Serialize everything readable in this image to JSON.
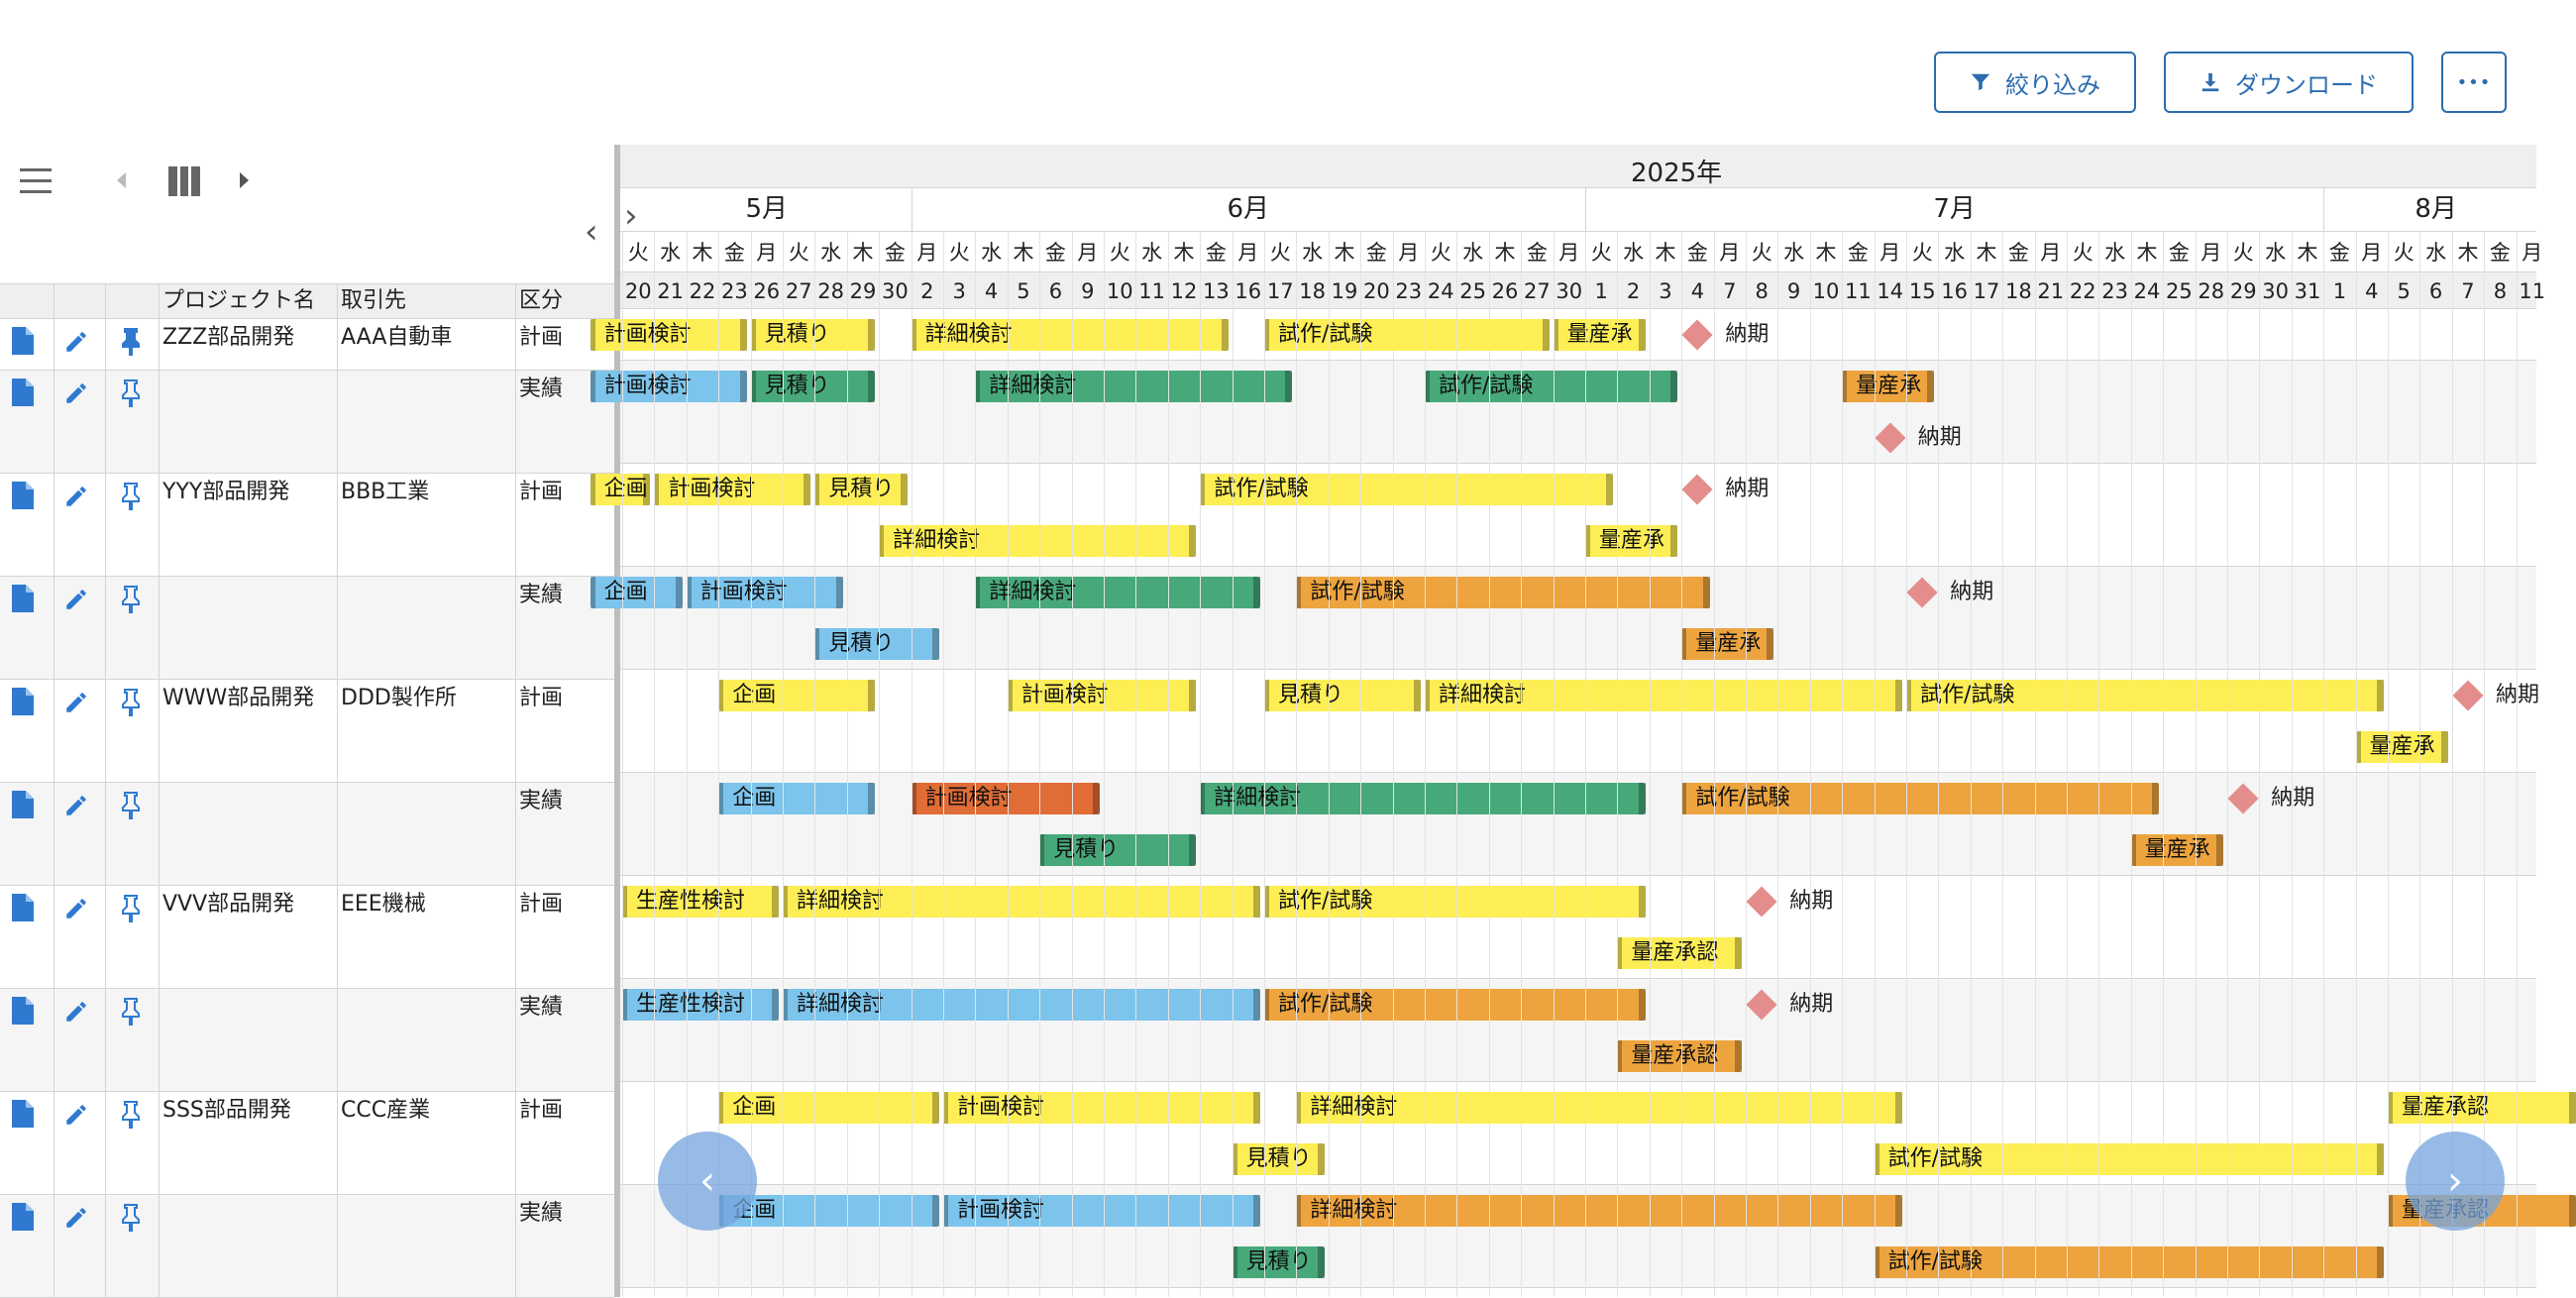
{
  "toolbar": {
    "filter_label": "絞り込み",
    "download_label": "ダウンロード",
    "more_label": "•••"
  },
  "grid": {
    "columns": [
      "プロジェクト名",
      "取引先",
      "区分"
    ],
    "collapse_glyph": "‹",
    "expand_glyph": "›"
  },
  "timeline": {
    "year": "2025年",
    "months": [
      "5月",
      "6月",
      "7月",
      "8月"
    ],
    "days": [
      {
        "w": "火",
        "d": "20"
      },
      {
        "w": "水",
        "d": "21"
      },
      {
        "w": "木",
        "d": "22"
      },
      {
        "w": "金",
        "d": "23"
      },
      {
        "w": "月",
        "d": "26"
      },
      {
        "w": "火",
        "d": "27"
      },
      {
        "w": "水",
        "d": "28"
      },
      {
        "w": "木",
        "d": "29"
      },
      {
        "w": "金",
        "d": "30"
      },
      {
        "w": "月",
        "d": "2"
      },
      {
        "w": "火",
        "d": "3"
      },
      {
        "w": "水",
        "d": "4"
      },
      {
        "w": "木",
        "d": "5"
      },
      {
        "w": "金",
        "d": "6"
      },
      {
        "w": "月",
        "d": "9"
      },
      {
        "w": "火",
        "d": "10"
      },
      {
        "w": "水",
        "d": "11"
      },
      {
        "w": "木",
        "d": "12"
      },
      {
        "w": "金",
        "d": "13"
      },
      {
        "w": "月",
        "d": "16"
      },
      {
        "w": "火",
        "d": "17"
      },
      {
        "w": "水",
        "d": "18"
      },
      {
        "w": "木",
        "d": "19"
      },
      {
        "w": "金",
        "d": "20"
      },
      {
        "w": "月",
        "d": "23"
      },
      {
        "w": "火",
        "d": "24"
      },
      {
        "w": "水",
        "d": "25"
      },
      {
        "w": "木",
        "d": "26"
      },
      {
        "w": "金",
        "d": "27"
      },
      {
        "w": "月",
        "d": "30"
      },
      {
        "w": "火",
        "d": "1"
      },
      {
        "w": "水",
        "d": "2"
      },
      {
        "w": "木",
        "d": "3"
      },
      {
        "w": "金",
        "d": "4"
      },
      {
        "w": "月",
        "d": "7"
      },
      {
        "w": "火",
        "d": "8"
      },
      {
        "w": "水",
        "d": "9"
      },
      {
        "w": "木",
        "d": "10"
      },
      {
        "w": "金",
        "d": "11"
      },
      {
        "w": "月",
        "d": "14"
      },
      {
        "w": "火",
        "d": "15"
      },
      {
        "w": "水",
        "d": "16"
      },
      {
        "w": "木",
        "d": "17"
      },
      {
        "w": "金",
        "d": "18"
      },
      {
        "w": "月",
        "d": "21"
      },
      {
        "w": "火",
        "d": "22"
      },
      {
        "w": "水",
        "d": "23"
      },
      {
        "w": "木",
        "d": "24"
      },
      {
        "w": "金",
        "d": "25"
      },
      {
        "w": "月",
        "d": "28"
      },
      {
        "w": "火",
        "d": "29"
      },
      {
        "w": "水",
        "d": "30"
      },
      {
        "w": "木",
        "d": "31"
      },
      {
        "w": "金",
        "d": "1"
      },
      {
        "w": "月",
        "d": "4"
      },
      {
        "w": "火",
        "d": "5"
      },
      {
        "w": "水",
        "d": "6"
      },
      {
        "w": "木",
        "d": "7"
      },
      {
        "w": "金",
        "d": "8"
      },
      {
        "w": "月",
        "d": "11"
      }
    ],
    "month_start_index": [
      0,
      9,
      30,
      53
    ]
  },
  "colors": {
    "plan": "#fdee55",
    "actual_blue": "#7cc4eb",
    "actual_green": "#47a97a",
    "actual_orange": "#eda43f",
    "actual_red": "#e06c36",
    "milestone": "#e48d8d",
    "accent": "#2b6cb0"
  },
  "rows": [
    {
      "project": "ZZZ部品開発",
      "client": "AAA自動車",
      "kind": "計画",
      "lanes": 1,
      "pinned": true,
      "bars": [
        {
          "label": "計画検討",
          "s": -1,
          "e": 3,
          "lane": 0,
          "color": "plan"
        },
        {
          "label": "見積り",
          "s": 4,
          "e": 7,
          "lane": 0,
          "color": "plan"
        },
        {
          "label": "詳細検討",
          "s": 9,
          "e": 18,
          "lane": 0,
          "color": "plan"
        },
        {
          "label": "試作/試験",
          "s": 20,
          "e": 28,
          "lane": 0,
          "color": "plan"
        },
        {
          "label": "量産承",
          "s": 29,
          "e": 31,
          "lane": 0,
          "color": "plan"
        }
      ],
      "milestones": [
        {
          "label": "納期",
          "i": 33,
          "lane": 0
        }
      ]
    },
    {
      "project": "",
      "client": "",
      "kind": "実績",
      "lanes": 2,
      "pinned": false,
      "bars": [
        {
          "label": "計画検討",
          "s": -1,
          "e": 3,
          "lane": 0,
          "color": "actual_blue"
        },
        {
          "label": "見積り",
          "s": 4,
          "e": 7,
          "lane": 0,
          "color": "actual_green"
        },
        {
          "label": "詳細検討",
          "s": 11,
          "e": 20,
          "lane": 0,
          "color": "actual_green"
        },
        {
          "label": "試作/試験",
          "s": 25,
          "e": 32,
          "lane": 0,
          "color": "actual_green"
        },
        {
          "label": "量産承",
          "s": 38,
          "e": 40,
          "lane": 0,
          "color": "actual_orange"
        }
      ],
      "milestones": [
        {
          "label": "納期",
          "i": 39,
          "lane": 1
        }
      ]
    },
    {
      "project": "YYY部品開発",
      "client": "BBB工業",
      "kind": "計画",
      "lanes": 2,
      "pinned": false,
      "bars": [
        {
          "label": "企画",
          "s": -1,
          "e": 0,
          "lane": 0,
          "color": "plan"
        },
        {
          "label": "計画検討",
          "s": 1,
          "e": 5,
          "lane": 0,
          "color": "plan"
        },
        {
          "label": "見積り",
          "s": 6,
          "e": 8,
          "lane": 0,
          "color": "plan"
        },
        {
          "label": "試作/試験",
          "s": 18,
          "e": 30,
          "lane": 0,
          "color": "plan"
        },
        {
          "label": "詳細検討",
          "s": 8,
          "e": 17,
          "lane": 1,
          "color": "plan"
        },
        {
          "label": "量産承",
          "s": 30,
          "e": 32,
          "lane": 1,
          "color": "plan"
        }
      ],
      "milestones": [
        {
          "label": "納期",
          "i": 33,
          "lane": 0
        }
      ]
    },
    {
      "project": "",
      "client": "",
      "kind": "実績",
      "lanes": 2,
      "pinned": false,
      "bars": [
        {
          "label": "企画",
          "s": -1,
          "e": 1,
          "lane": 0,
          "color": "actual_blue"
        },
        {
          "label": "計画検討",
          "s": 2,
          "e": 6,
          "lane": 0,
          "color": "actual_blue"
        },
        {
          "label": "詳細検討",
          "s": 11,
          "e": 19,
          "lane": 0,
          "color": "actual_green"
        },
        {
          "label": "試作/試験",
          "s": 21,
          "e": 33,
          "lane": 0,
          "color": "actual_orange"
        },
        {
          "label": "見積り",
          "s": 6,
          "e": 9,
          "lane": 1,
          "color": "actual_blue"
        },
        {
          "label": "量産承",
          "s": 33,
          "e": 35,
          "lane": 1,
          "color": "actual_orange"
        }
      ],
      "milestones": [
        {
          "label": "納期",
          "i": 40,
          "lane": 0
        }
      ]
    },
    {
      "project": "WWW部品開発",
      "client": "DDD製作所",
      "kind": "計画",
      "lanes": 2,
      "pinned": false,
      "bars": [
        {
          "label": "企画",
          "s": 3,
          "e": 7,
          "lane": 0,
          "color": "plan"
        },
        {
          "label": "計画検討",
          "s": 12,
          "e": 17,
          "lane": 0,
          "color": "plan"
        },
        {
          "label": "見積り",
          "s": 20,
          "e": 24,
          "lane": 0,
          "color": "plan"
        },
        {
          "label": "詳細検討",
          "s": 25,
          "e": 39,
          "lane": 0,
          "color": "plan"
        },
        {
          "label": "試作/試験",
          "s": 40,
          "e": 54,
          "lane": 0,
          "color": "plan"
        },
        {
          "label": "量産承",
          "s": 54,
          "e": 56,
          "lane": 1,
          "color": "plan"
        }
      ],
      "milestones": [
        {
          "label": "納期",
          "i": 57,
          "lane": 0
        }
      ]
    },
    {
      "project": "",
      "client": "",
      "kind": "実績",
      "lanes": 2,
      "pinned": false,
      "bars": [
        {
          "label": "企画",
          "s": 3,
          "e": 7,
          "lane": 0,
          "color": "actual_blue"
        },
        {
          "label": "計画検討",
          "s": 9,
          "e": 14,
          "lane": 0,
          "color": "actual_red"
        },
        {
          "label": "詳細検討",
          "s": 18,
          "e": 31,
          "lane": 0,
          "color": "actual_green"
        },
        {
          "label": "試作/試験",
          "s": 33,
          "e": 47,
          "lane": 0,
          "color": "actual_orange"
        },
        {
          "label": "見積り",
          "s": 13,
          "e": 17,
          "lane": 1,
          "color": "actual_green"
        },
        {
          "label": "量産承",
          "s": 47,
          "e": 49,
          "lane": 1,
          "color": "actual_orange"
        }
      ],
      "milestones": [
        {
          "label": "納期",
          "i": 50,
          "lane": 0
        }
      ]
    },
    {
      "project": "VVV部品開発",
      "client": "EEE機械",
      "kind": "計画",
      "lanes": 2,
      "pinned": false,
      "bars": [
        {
          "label": "生産性検討",
          "s": 0,
          "e": 4,
          "lane": 0,
          "color": "plan"
        },
        {
          "label": "詳細検討",
          "s": 5,
          "e": 19,
          "lane": 0,
          "color": "plan"
        },
        {
          "label": "試作/試験",
          "s": 20,
          "e": 31,
          "lane": 0,
          "color": "plan"
        },
        {
          "label": "量産承認",
          "s": 31,
          "e": 34,
          "lane": 1,
          "color": "plan"
        }
      ],
      "milestones": [
        {
          "label": "納期",
          "i": 35,
          "lane": 0
        }
      ]
    },
    {
      "project": "",
      "client": "",
      "kind": "実績",
      "lanes": 2,
      "pinned": false,
      "bars": [
        {
          "label": "生産性検討",
          "s": 0,
          "e": 4,
          "lane": 0,
          "color": "actual_blue"
        },
        {
          "label": "詳細検討",
          "s": 5,
          "e": 19,
          "lane": 0,
          "color": "actual_blue"
        },
        {
          "label": "試作/試験",
          "s": 20,
          "e": 31,
          "lane": 0,
          "color": "actual_orange"
        },
        {
          "label": "量産承認",
          "s": 31,
          "e": 34,
          "lane": 1,
          "color": "actual_orange"
        }
      ],
      "milestones": [
        {
          "label": "納期",
          "i": 35,
          "lane": 0
        }
      ]
    },
    {
      "project": "SSS部品開発",
      "client": "CCC産業",
      "kind": "計画",
      "lanes": 2,
      "pinned": false,
      "bars": [
        {
          "label": "企画",
          "s": 3,
          "e": 9,
          "lane": 0,
          "color": "plan"
        },
        {
          "label": "計画検討",
          "s": 10,
          "e": 19,
          "lane": 0,
          "color": "plan"
        },
        {
          "label": "詳細検討",
          "s": 21,
          "e": 39,
          "lane": 0,
          "color": "plan"
        },
        {
          "label": "量産承認",
          "s": 55,
          "e": 60,
          "lane": 0,
          "color": "plan"
        },
        {
          "label": "見積り",
          "s": 19,
          "e": 21,
          "lane": 1,
          "color": "plan"
        },
        {
          "label": "試作/試験",
          "s": 39,
          "e": 54,
          "lane": 1,
          "color": "plan"
        }
      ],
      "milestones": []
    },
    {
      "project": "",
      "client": "",
      "kind": "実績",
      "lanes": 2,
      "pinned": false,
      "bars": [
        {
          "label": "企画",
          "s": 3,
          "e": 9,
          "lane": 0,
          "color": "actual_blue"
        },
        {
          "label": "計画検討",
          "s": 10,
          "e": 19,
          "lane": 0,
          "color": "actual_blue"
        },
        {
          "label": "詳細検討",
          "s": 21,
          "e": 39,
          "lane": 0,
          "color": "actual_orange"
        },
        {
          "label": "量産承認",
          "s": 55,
          "e": 60,
          "lane": 0,
          "color": "actual_orange"
        },
        {
          "label": "見積り",
          "s": 19,
          "e": 21,
          "lane": 1,
          "color": "actual_green"
        },
        {
          "label": "試作/試験",
          "s": 39,
          "e": 54,
          "lane": 1,
          "color": "actual_orange"
        }
      ],
      "milestones": []
    }
  ],
  "nav": {
    "prev_label": "‹",
    "next_label": "›"
  }
}
